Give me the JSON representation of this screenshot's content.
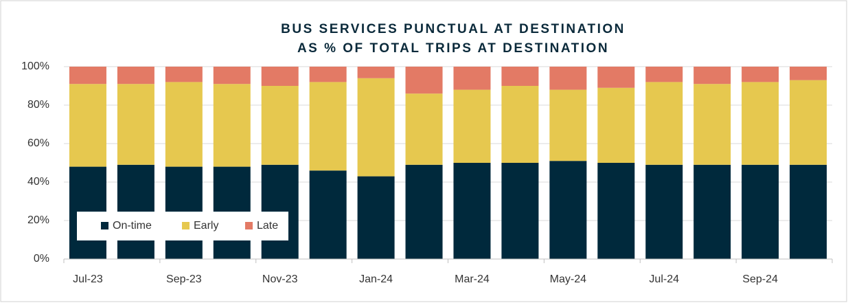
{
  "chart_data": {
    "type": "stacked_bar",
    "title": "BUS SERVICES PUNCTUAL AT DESTINATION",
    "subtitle": "AS % OF TOTAL TRIPS AT DESTINATION",
    "categories": [
      "Jul-23",
      null,
      "Sep-23",
      null,
      "Nov-23",
      null,
      "Jan-24",
      null,
      "Mar-24",
      null,
      "May-24",
      null,
      "Jul-24",
      null,
      "Sep-24",
      null
    ],
    "series": [
      {
        "name": "On-time",
        "color": "#00293c",
        "values": [
          48,
          49,
          48,
          48,
          49,
          46,
          43,
          49,
          50,
          50,
          51,
          50,
          49,
          49,
          49,
          49
        ]
      },
      {
        "name": "Early",
        "color": "#e6c84f",
        "values": [
          43,
          42,
          44,
          43,
          41,
          46,
          51,
          37,
          38,
          40,
          37,
          39,
          43,
          42,
          43,
          44
        ]
      },
      {
        "name": "Late",
        "color": "#e37a65",
        "values": [
          9,
          9,
          8,
          9,
          10,
          8,
          6,
          14,
          12,
          10,
          12,
          11,
          8,
          9,
          8,
          7
        ]
      }
    ],
    "ylim": [
      0,
      100
    ],
    "yticks": [
      {
        "value": 0,
        "label": "0%"
      },
      {
        "value": 20,
        "label": "20%"
      },
      {
        "value": 40,
        "label": "40%"
      },
      {
        "value": 60,
        "label": "60%"
      },
      {
        "value": 80,
        "label": "80%"
      },
      {
        "value": 100,
        "label": "100%"
      }
    ],
    "grid": true,
    "legend": "lower left"
  }
}
